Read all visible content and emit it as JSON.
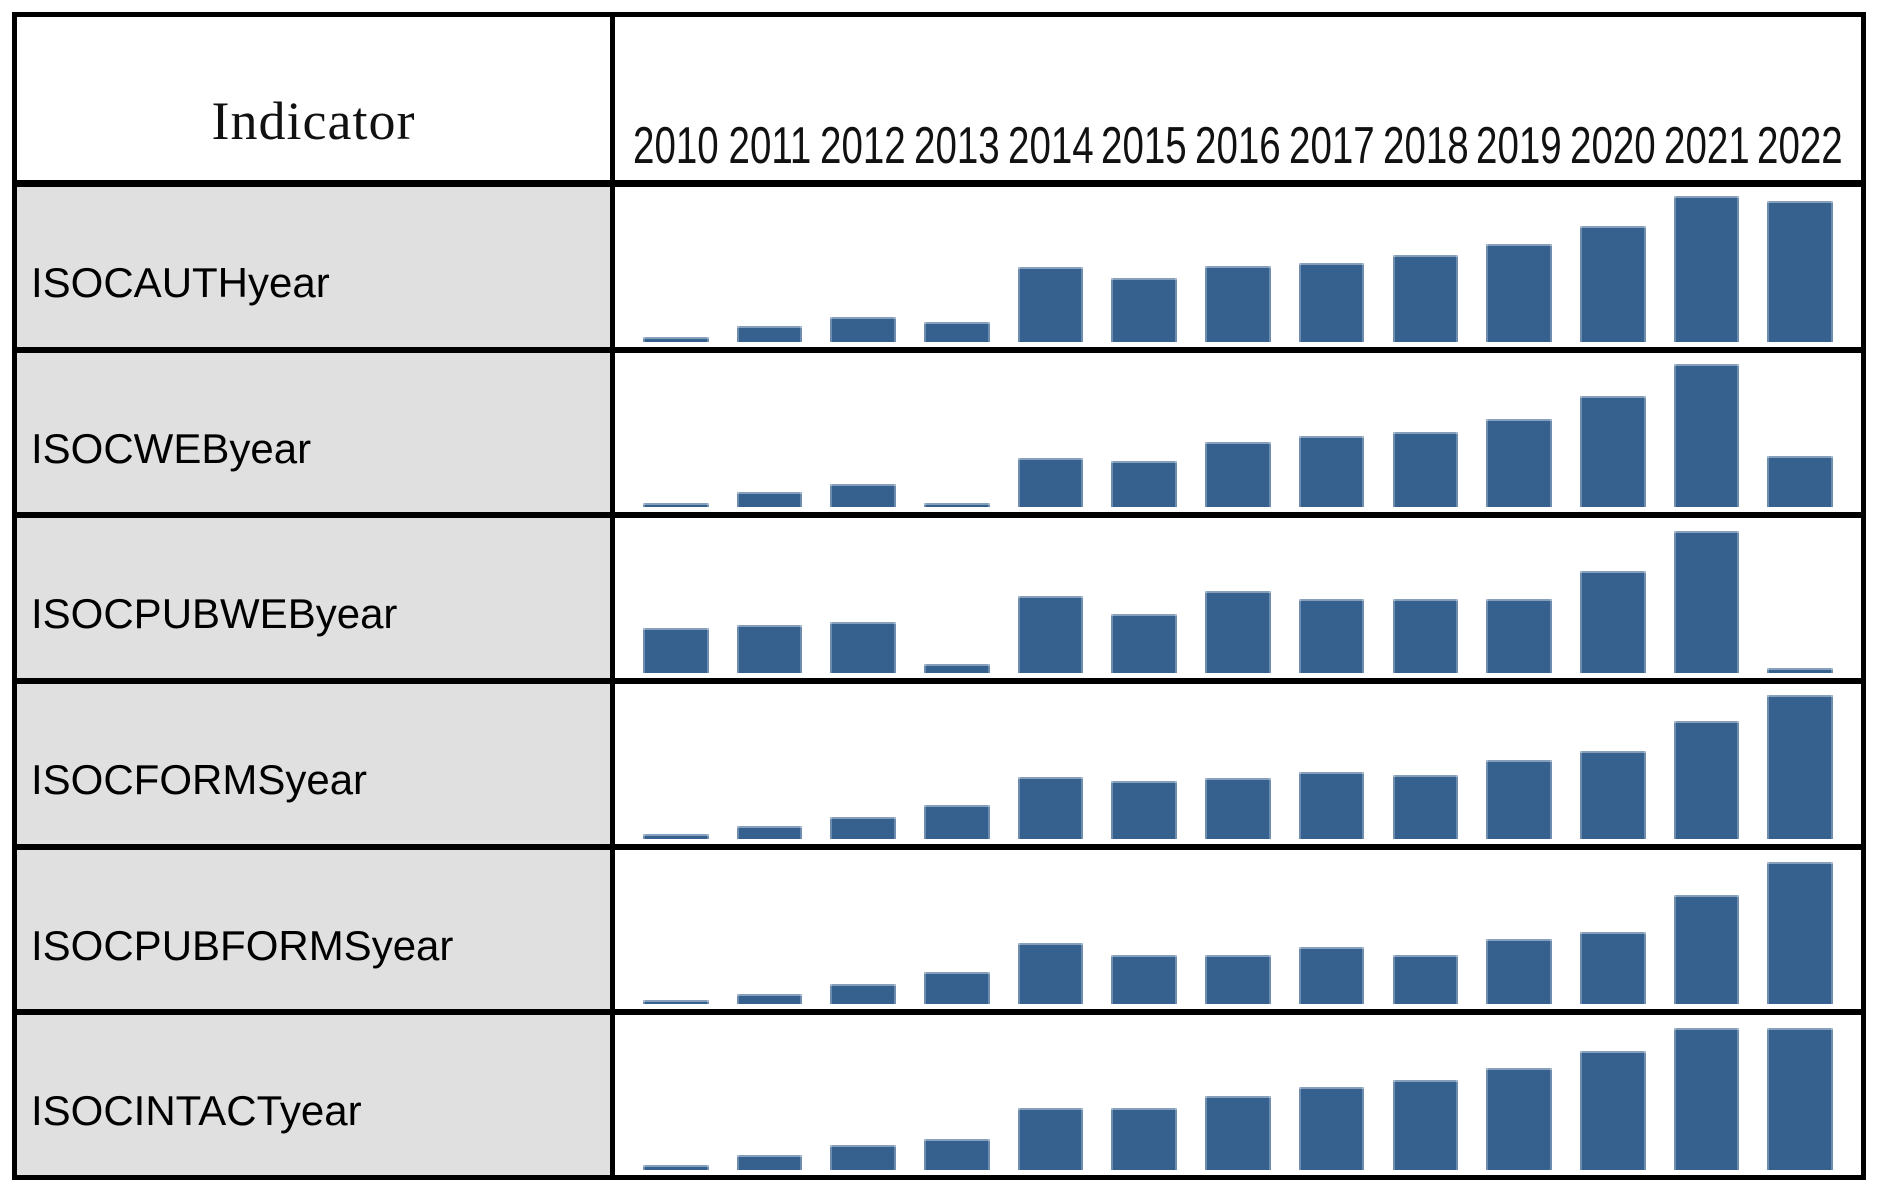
{
  "header": {
    "indicator_label": "Indicator"
  },
  "chart_data": {
    "type": "bar",
    "title": "Indicator",
    "categories": [
      "2010",
      "2011",
      "2012",
      "2013",
      "2014",
      "2015",
      "2016",
      "2017",
      "2018",
      "2019",
      "2020",
      "2021",
      "2022"
    ],
    "series": [
      {
        "name": "ISOCAUTHyear",
        "values": [
          3,
          10,
          16,
          13,
          48,
          41,
          49,
          51,
          56,
          63,
          75,
          94,
          91
        ]
      },
      {
        "name": "ISOCWEByear",
        "values": [
          3,
          10,
          15,
          3,
          32,
          30,
          42,
          46,
          49,
          57,
          72,
          93,
          33
        ]
      },
      {
        "name": "ISOCPUBWEByear",
        "values": [
          29,
          31,
          33,
          6,
          50,
          38,
          53,
          48,
          48,
          48,
          66,
          92,
          3
        ]
      },
      {
        "name": "ISOCFORMSyear",
        "values": [
          3,
          8,
          14,
          22,
          40,
          37,
          39,
          43,
          41,
          51,
          57,
          76,
          93
        ]
      },
      {
        "name": "ISOCPUBFORMSyear",
        "values": [
          3,
          7,
          13,
          21,
          40,
          32,
          32,
          37,
          32,
          42,
          47,
          71,
          92
        ]
      },
      {
        "name": "ISOCINTACTyear",
        "values": [
          3,
          10,
          16,
          20,
          40,
          40,
          48,
          54,
          58,
          66,
          77,
          92,
          92
        ]
      }
    ],
    "value_scale": "relative bar height as percent of row chart height (no numeric axis shown in figure)",
    "ylim": [
      0,
      100
    ],
    "grid": false,
    "legend": false
  },
  "colors": {
    "bar_fill": "#36618F",
    "bar_edge": "#B9C6D7",
    "label_cell_bg": "#E0E0E0",
    "table_border": "#000000",
    "page_bg": "#FFFFFF"
  }
}
